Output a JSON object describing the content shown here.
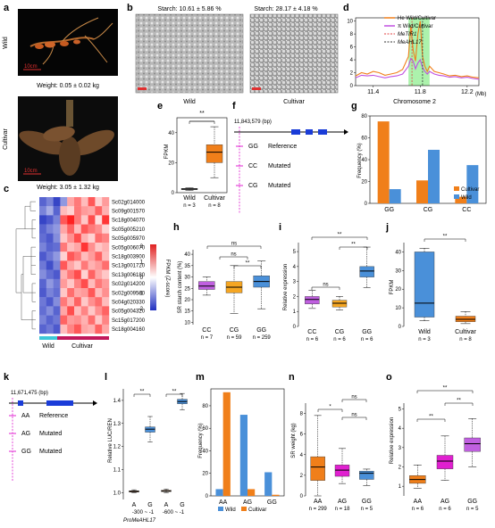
{
  "panel_letters": [
    "a",
    "b",
    "c",
    "d",
    "e",
    "f",
    "g",
    "h",
    "i",
    "j",
    "k",
    "l",
    "m",
    "n",
    "o"
  ],
  "colors": {
    "cultivar": "#f07f1a",
    "wild": "#4a90d9",
    "magenta": "#e020d0",
    "purple": "#c050e0",
    "heat_high": "#e02020",
    "heat_low": "#2030c0",
    "wild_bar": "#3ec8d8",
    "cultivar_bar": "#c2185b",
    "highlight_green": "#90ee90"
  },
  "panel_a": {
    "wild_label": "Wild",
    "cultivar_label": "Cultivar",
    "wild_scale": "10cm",
    "cultivar_scale": "10cm",
    "wild_weight": "Weight: 0.05 ± 0.02 kg",
    "cultivar_weight": "Weight: 3.05 ± 1.32 kg"
  },
  "panel_b": {
    "wild_starch": "Starch: 10.61 ± 5.86 %",
    "cultivar_starch": "Starch: 28.17 ± 4.18 %",
    "wild_label": "Wild",
    "cultivar_label": "Cultivar"
  },
  "panel_c": {
    "genes": [
      "Sc02g014000",
      "Sc09g001570",
      "Sc18g004070",
      "Sc05g005210",
      "Sc05g005970",
      "Sc05g006070",
      "Sc18g003900",
      "Sc13g001720",
      "Sc13g006180",
      "Sc02g014200",
      "Sc02g009580",
      "Sc04g020330",
      "Sc05g004320",
      "Sc15g017200",
      "Sc18g004160"
    ],
    "legend_title": "FPKM (Z-score)",
    "legend_ticks": [
      "2",
      "1",
      "0",
      "-1",
      "-2"
    ],
    "group_wild": "Wild",
    "group_cultivar": "Cultivar"
  },
  "panel_d": {
    "legend": [
      "He Wild/Cultivar",
      "π Wild/Cultivar",
      "MeTIR1",
      "MeAHL17"
    ],
    "xlabel": "Chromosome 2",
    "unit": "(Mb)"
  },
  "panel_e": {
    "ylabel": "FPKM",
    "sig": "**"
  },
  "panel_f": {
    "position": "11,843,579 (bp)",
    "alleles": [
      {
        "code": "GG",
        "label": "Reference"
      },
      {
        "code": "CC",
        "label": "Mutated"
      },
      {
        "code": "CG",
        "label": "Mutated"
      }
    ]
  },
  "panel_h": {
    "ylabel": "SR starch content (%)",
    "sig": [
      "ns",
      "ns",
      "**"
    ]
  },
  "panel_i": {
    "ylabel": "Relative expression",
    "sig": [
      "ns",
      "**",
      "**"
    ]
  },
  "panel_j": {
    "ylabel": "FPKM",
    "sig": "**"
  },
  "panel_k": {
    "position": "11,671,475 (bp)",
    "alleles": [
      {
        "code": "AA",
        "label": "Reference"
      },
      {
        "code": "AG",
        "label": "Mutated"
      },
      {
        "code": "GG",
        "label": "Mutated"
      }
    ]
  },
  "panel_l": {
    "ylabel": "Relative LUC/REN",
    "promoter": "ProMeAHL17",
    "groups": [
      "-300 ~ -1",
      "-600 ~ -1"
    ],
    "alleles": [
      "A",
      "G"
    ],
    "sig": [
      "**",
      "**"
    ]
  },
  "panel_n": {
    "ylabel": "SR weight (kg)",
    "sig": [
      "ns",
      "*",
      "ns"
    ]
  },
  "panel_o": {
    "ylabel": "Relative expression",
    "sig": [
      "**",
      "**",
      "**"
    ]
  },
  "chart_data": [
    {
      "id": "d",
      "type": "line",
      "x_ticks": [
        "11.4",
        "11.8",
        "12.2"
      ],
      "y_ticks": [
        "0",
        "2",
        "4",
        "6",
        "8",
        "10"
      ],
      "xlim": [
        11.25,
        12.3
      ],
      "ylim": [
        0,
        10.5
      ],
      "highlight": [
        11.7,
        11.88
      ],
      "markers": [
        11.73,
        11.82
      ],
      "series": [
        {
          "name": "He Wild/Cultivar",
          "x": [
            11.25,
            11.3,
            11.35,
            11.4,
            11.45,
            11.5,
            11.55,
            11.6,
            11.65,
            11.7,
            11.72,
            11.74,
            11.76,
            11.78,
            11.8,
            11.82,
            11.84,
            11.86,
            11.88,
            11.92,
            11.96,
            12.0,
            12.05,
            12.1,
            12.15,
            12.2,
            12.25,
            12.3
          ],
          "y": [
            1.5,
            2.0,
            1.8,
            2.2,
            2.0,
            1.6,
            1.8,
            2.0,
            2.5,
            4.5,
            9.2,
            5.5,
            3.8,
            8.0,
            10.0,
            4.5,
            3.0,
            2.2,
            3.0,
            2.2,
            2.0,
            1.8,
            1.5,
            1.6,
            1.4,
            1.5,
            1.3,
            1.2
          ]
        },
        {
          "name": "π Wild/Cultivar",
          "x": [
            11.25,
            11.3,
            11.35,
            11.4,
            11.45,
            11.5,
            11.55,
            11.6,
            11.65,
            11.7,
            11.72,
            11.74,
            11.76,
            11.78,
            11.8,
            11.82,
            11.84,
            11.86,
            11.88,
            11.92,
            11.96,
            12.0,
            12.05,
            12.1,
            12.15,
            12.2,
            12.25,
            12.3
          ],
          "y": [
            1.2,
            1.6,
            1.5,
            1.6,
            1.4,
            1.2,
            1.4,
            1.5,
            1.8,
            3.0,
            4.2,
            3.8,
            2.6,
            3.5,
            4.0,
            2.8,
            2.2,
            1.8,
            2.2,
            1.8,
            1.6,
            1.5,
            1.3,
            1.4,
            1.2,
            1.3,
            1.1,
            1.0
          ]
        }
      ]
    },
    {
      "id": "e",
      "type": "box",
      "categories": [
        "Wild",
        "Cultivar"
      ],
      "n": [
        "n = 3",
        "n = 8"
      ],
      "y_ticks": [
        "0",
        "20",
        "40"
      ],
      "ylim": [
        0,
        50
      ],
      "boxes": [
        {
          "min": 1.5,
          "q1": 2.0,
          "median": 2.4,
          "q3": 2.8,
          "max": 3.2
        },
        {
          "min": 10,
          "q1": 20,
          "median": 27,
          "q3": 32,
          "max": 44
        }
      ]
    },
    {
      "id": "g",
      "type": "bar",
      "categories": [
        "GG",
        "CG",
        "CC"
      ],
      "y_ticks": [
        "0",
        "20",
        "40",
        "60",
        "80"
      ],
      "ylim": [
        0,
        80
      ],
      "ylabel": "Frequency (%)",
      "series": [
        {
          "name": "Cultivar",
          "values": [
            75,
            21,
            6
          ]
        },
        {
          "name": "Wild",
          "values": [
            13,
            49,
            35
          ]
        }
      ]
    },
    {
      "id": "h",
      "type": "box",
      "categories": [
        "CC",
        "CG",
        "GG"
      ],
      "n": [
        "n = 7",
        "n = 59",
        "n = 259"
      ],
      "y_ticks": [
        "10",
        "15",
        "20",
        "25",
        "30",
        "35",
        "40"
      ],
      "ylim": [
        9,
        42
      ],
      "boxes": [
        {
          "min": 22,
          "q1": 24.5,
          "median": 26,
          "q3": 28,
          "max": 30
        },
        {
          "min": 14,
          "q1": 23,
          "median": 25.5,
          "q3": 28,
          "max": 35
        },
        {
          "min": 16,
          "q1": 25.5,
          "median": 28,
          "q3": 30.5,
          "max": 37
        }
      ]
    },
    {
      "id": "i",
      "type": "box",
      "categories": [
        "CC",
        "CG",
        "GG"
      ],
      "n": [
        "n = 6",
        "n = 6",
        "n = 6"
      ],
      "y_ticks": [
        "0",
        "1",
        "2",
        "3",
        "4",
        "5"
      ],
      "ylim": [
        0,
        5.6
      ],
      "boxes": [
        {
          "min": 1.2,
          "q1": 1.5,
          "median": 1.8,
          "q3": 2.0,
          "max": 2.4
        },
        {
          "min": 1.1,
          "q1": 1.3,
          "median": 1.55,
          "q3": 1.75,
          "max": 2.0
        },
        {
          "min": 2.6,
          "q1": 3.3,
          "median": 3.7,
          "q3": 4.0,
          "max": 5.3
        }
      ]
    },
    {
      "id": "j",
      "type": "box",
      "categories": [
        "Wild",
        "Cultivar"
      ],
      "n": [
        "n = 3",
        "n = 8"
      ],
      "y_ticks": [
        "0",
        "10",
        "20",
        "30",
        "40"
      ],
      "ylim": [
        0,
        45
      ],
      "boxes": [
        {
          "min": 3,
          "q1": 5,
          "median": 12.5,
          "q3": 40,
          "max": 42
        },
        {
          "min": 1.5,
          "q1": 2.5,
          "median": 3.8,
          "q3": 5.5,
          "max": 8
        }
      ]
    },
    {
      "id": "l",
      "type": "box",
      "categories": [
        "A",
        "G",
        "A",
        "G"
      ],
      "y_ticks": [
        "1.0",
        "1.1",
        "1.2",
        "1.3",
        "1.4"
      ],
      "ylim": [
        0.97,
        1.45
      ],
      "boxes": [
        {
          "min": 1.0,
          "q1": 1.002,
          "median": 1.005,
          "q3": 1.008,
          "max": 1.012
        },
        {
          "min": 1.22,
          "q1": 1.262,
          "median": 1.275,
          "q3": 1.285,
          "max": 1.33
        },
        {
          "min": 1.0,
          "q1": 1.004,
          "median": 1.007,
          "q3": 1.01,
          "max": 1.015
        },
        {
          "min": 1.36,
          "q1": 1.385,
          "median": 1.395,
          "q3": 1.405,
          "max": 1.43
        }
      ]
    },
    {
      "id": "m",
      "type": "bar",
      "categories": [
        "AA",
        "AG",
        "GG"
      ],
      "y_ticks": [
        "0",
        "20",
        "40",
        "60",
        "80"
      ],
      "ylim": [
        0,
        95
      ],
      "ylabel": "Frequency (%)",
      "series": [
        {
          "name": "Wild",
          "values": [
            6,
            72,
            21
          ]
        },
        {
          "name": "Cultivar",
          "values": [
            92,
            6,
            1
          ]
        }
      ]
    },
    {
      "id": "n",
      "type": "box",
      "categories": [
        "AA",
        "AG",
        "GG"
      ],
      "n": [
        "n = 299",
        "n = 18",
        "n = 5"
      ],
      "y_ticks": [
        "0",
        "2",
        "4",
        "6",
        "8"
      ],
      "ylim": [
        0,
        9
      ],
      "boxes": [
        {
          "min": 0,
          "q1": 1.5,
          "median": 2.8,
          "q3": 3.8,
          "max": 7.8
        },
        {
          "min": 1.2,
          "q1": 1.9,
          "median": 2.5,
          "q3": 3.0,
          "max": 4.6
        },
        {
          "min": 1.0,
          "q1": 1.6,
          "median": 2.2,
          "q3": 2.4,
          "max": 2.6
        }
      ]
    },
    {
      "id": "o",
      "type": "box",
      "categories": [
        "AA",
        "AG",
        "GG"
      ],
      "n": [
        "n = 6",
        "n = 6",
        "n = 5"
      ],
      "y_ticks": [
        "1",
        "2",
        "3",
        "4",
        "5"
      ],
      "ylim": [
        0.5,
        5.3
      ],
      "boxes": [
        {
          "min": 0.9,
          "q1": 1.15,
          "median": 1.35,
          "q3": 1.55,
          "max": 2.1
        },
        {
          "min": 1.3,
          "q1": 1.9,
          "median": 2.3,
          "q3": 2.6,
          "max": 3.6
        },
        {
          "min": 2.0,
          "q1": 2.8,
          "median": 3.2,
          "q3": 3.5,
          "max": 4.5
        }
      ]
    }
  ]
}
